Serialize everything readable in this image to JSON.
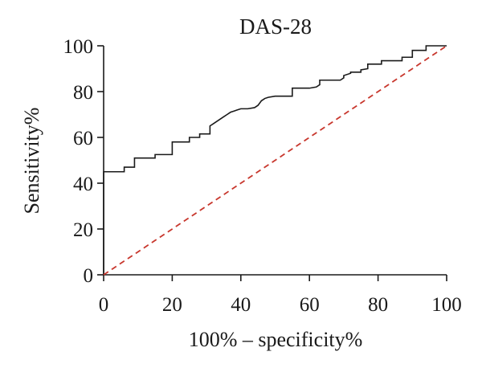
{
  "chart_data": {
    "type": "line",
    "title": "DAS-28",
    "xlabel": "100% – specificity%",
    "ylabel": "Sensitivity%",
    "xlim": [
      0,
      100
    ],
    "ylim": [
      0,
      100
    ],
    "x_ticks": [
      "0",
      "20",
      "40",
      "60",
      "80",
      "100"
    ],
    "y_ticks": [
      "0",
      "20",
      "40",
      "60",
      "80",
      "100"
    ],
    "grid": false,
    "legend": "none",
    "series": [
      {
        "style": "solid",
        "color": "#1a1a1a",
        "x": [
          0,
          0,
          6,
          6,
          9,
          9,
          15,
          15,
          20,
          20,
          25,
          25,
          28,
          28,
          31,
          31,
          32,
          33,
          34,
          35,
          36,
          37,
          38,
          39,
          40,
          42,
          44,
          45,
          46,
          47,
          48,
          50,
          52,
          53,
          54,
          55,
          55,
          60,
          62,
          63,
          63,
          69,
          70,
          70,
          72,
          72,
          75,
          75,
          77,
          77,
          81,
          81,
          87,
          87,
          90,
          90,
          94,
          94,
          100
        ],
        "y": [
          0,
          45,
          45,
          47,
          47,
          51,
          51,
          52.5,
          52.5,
          58,
          58,
          60,
          60,
          61.5,
          61.5,
          65,
          66,
          67,
          68,
          69,
          70,
          71,
          71.5,
          72,
          72.5,
          72.5,
          73,
          74,
          76,
          77,
          77.5,
          78,
          78,
          78,
          78,
          78,
          81.5,
          81.5,
          82,
          83,
          85,
          85,
          86,
          87,
          88,
          88.5,
          88.5,
          89.5,
          90,
          92,
          92,
          93.5,
          93.5,
          95,
          95,
          98,
          98,
          100,
          100
        ]
      },
      {
        "style": "dashed",
        "color": "#c8372d",
        "x": [
          0,
          100
        ],
        "y": [
          0,
          100
        ]
      }
    ]
  }
}
